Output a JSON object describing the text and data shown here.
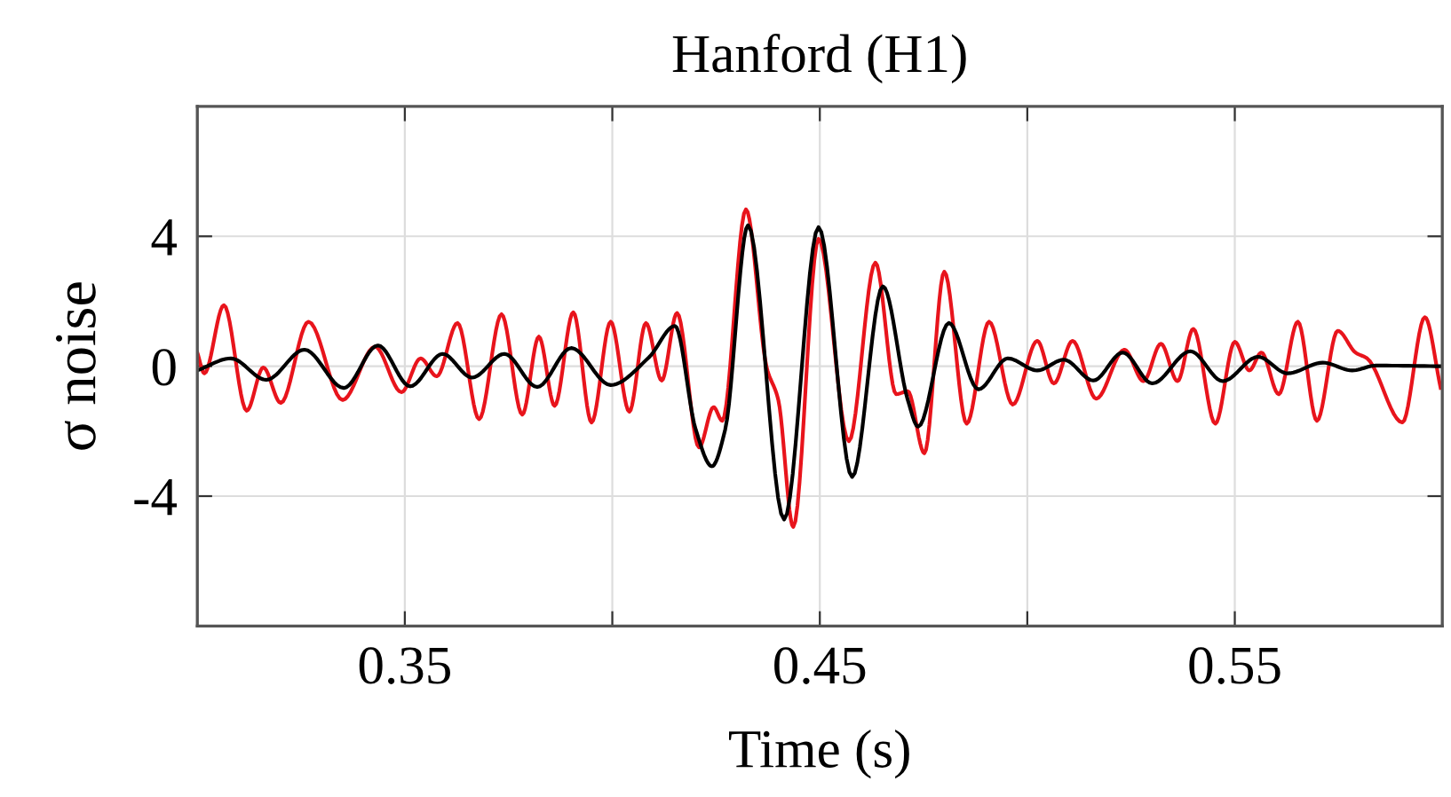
{
  "chart_data": {
    "type": "line",
    "title": "Hanford (H1)",
    "xlabel": "Time (s)",
    "ylabel": "σ noise",
    "xlim": [
      0.3,
      0.6
    ],
    "xticks": [
      0.35,
      {
        "value": 0.4,
        "label": null
      },
      0.45,
      {
        "value": 0.5,
        "label": null
      },
      0.55
    ],
    "ylim": [
      -8,
      8
    ],
    "yticks": [
      {
        "value": -4,
        "label": "-4"
      },
      0,
      4
    ],
    "grid": true,
    "marker": "none",
    "line_style": "solid",
    "series": [
      {
        "color": "#e8141c",
        "x": [
          0.3,
          0.3017,
          0.3064,
          0.3119,
          0.3159,
          0.3201,
          0.3268,
          0.335,
          0.3428,
          0.3492,
          0.3538,
          0.3577,
          0.3627,
          0.3679,
          0.3733,
          0.3783,
          0.3823,
          0.3861,
          0.3906,
          0.395,
          0.3996,
          0.4041,
          0.4081,
          0.4119,
          0.4156,
          0.4209,
          0.4244,
          0.4265,
          0.4322,
          0.4372,
          0.44,
          0.4436,
          0.4497,
          0.457,
          0.4634,
          0.4684,
          0.4712,
          0.4752,
          0.48,
          0.4854,
          0.4908,
          0.4965,
          0.5024,
          0.5064,
          0.5109,
          0.5166,
          0.5234,
          0.528,
          0.5322,
          0.5362,
          0.54,
          0.5453,
          0.55,
          0.5535,
          0.5564,
          0.5606,
          0.5652,
          0.5698,
          0.5748,
          0.5791,
          0.5819,
          0.5904,
          0.5958,
          0.5996
        ],
        "values": [
          0.42,
          -0.22,
          1.88,
          -1.37,
          -0.04,
          -1.13,
          1.37,
          -1.04,
          0.6,
          -0.8,
          0.24,
          -0.31,
          1.33,
          -1.63,
          1.6,
          -1.49,
          0.91,
          -1.22,
          1.66,
          -1.73,
          1.37,
          -1.4,
          1.33,
          -0.44,
          1.64,
          -2.5,
          -1.26,
          -1.68,
          4.83,
          -0.04,
          -1.04,
          -4.95,
          3.92,
          -2.31,
          3.19,
          -0.86,
          -0.77,
          -2.68,
          2.91,
          -1.77,
          1.37,
          -1.18,
          0.78,
          -0.53,
          0.78,
          -1.0,
          0.51,
          -0.46,
          0.69,
          -0.46,
          1.15,
          -1.77,
          0.75,
          -0.13,
          0.42,
          -0.86,
          1.37,
          -1.68,
          1.09,
          0.42,
          0.24,
          -1.73,
          1.51,
          -0.67
        ]
      },
      {
        "color": "#000000",
        "x": [
          0.3,
          0.3081,
          0.3166,
          0.3258,
          0.3353,
          0.3435,
          0.3513,
          0.3591,
          0.3662,
          0.374,
          0.3819,
          0.3901,
          0.3996,
          0.4088,
          0.4151,
          0.4201,
          0.424,
          0.4272,
          0.4327,
          0.4414,
          0.4497,
          0.4578,
          0.4652,
          0.4712,
          0.4737,
          0.4811,
          0.4882,
          0.4953,
          0.5024,
          0.5088,
          0.5159,
          0.523,
          0.5301,
          0.5393,
          0.5471,
          0.5556,
          0.5627,
          0.5712,
          0.5783,
          0.584,
          0.5996
        ],
        "values": [
          -0.13,
          0.24,
          -0.42,
          0.51,
          -0.67,
          0.64,
          -0.62,
          0.38,
          -0.35,
          0.38,
          -0.64,
          0.56,
          -0.58,
          0.27,
          1.24,
          -1.95,
          -3.08,
          -1.95,
          4.34,
          -4.72,
          4.28,
          -3.41,
          2.46,
          -1.04,
          -1.86,
          1.33,
          -0.71,
          0.24,
          -0.13,
          0.2,
          -0.44,
          0.42,
          -0.53,
          0.46,
          -0.46,
          0.29,
          -0.22,
          0.11,
          -0.13,
          0.02,
          0.0
        ]
      }
    ]
  }
}
